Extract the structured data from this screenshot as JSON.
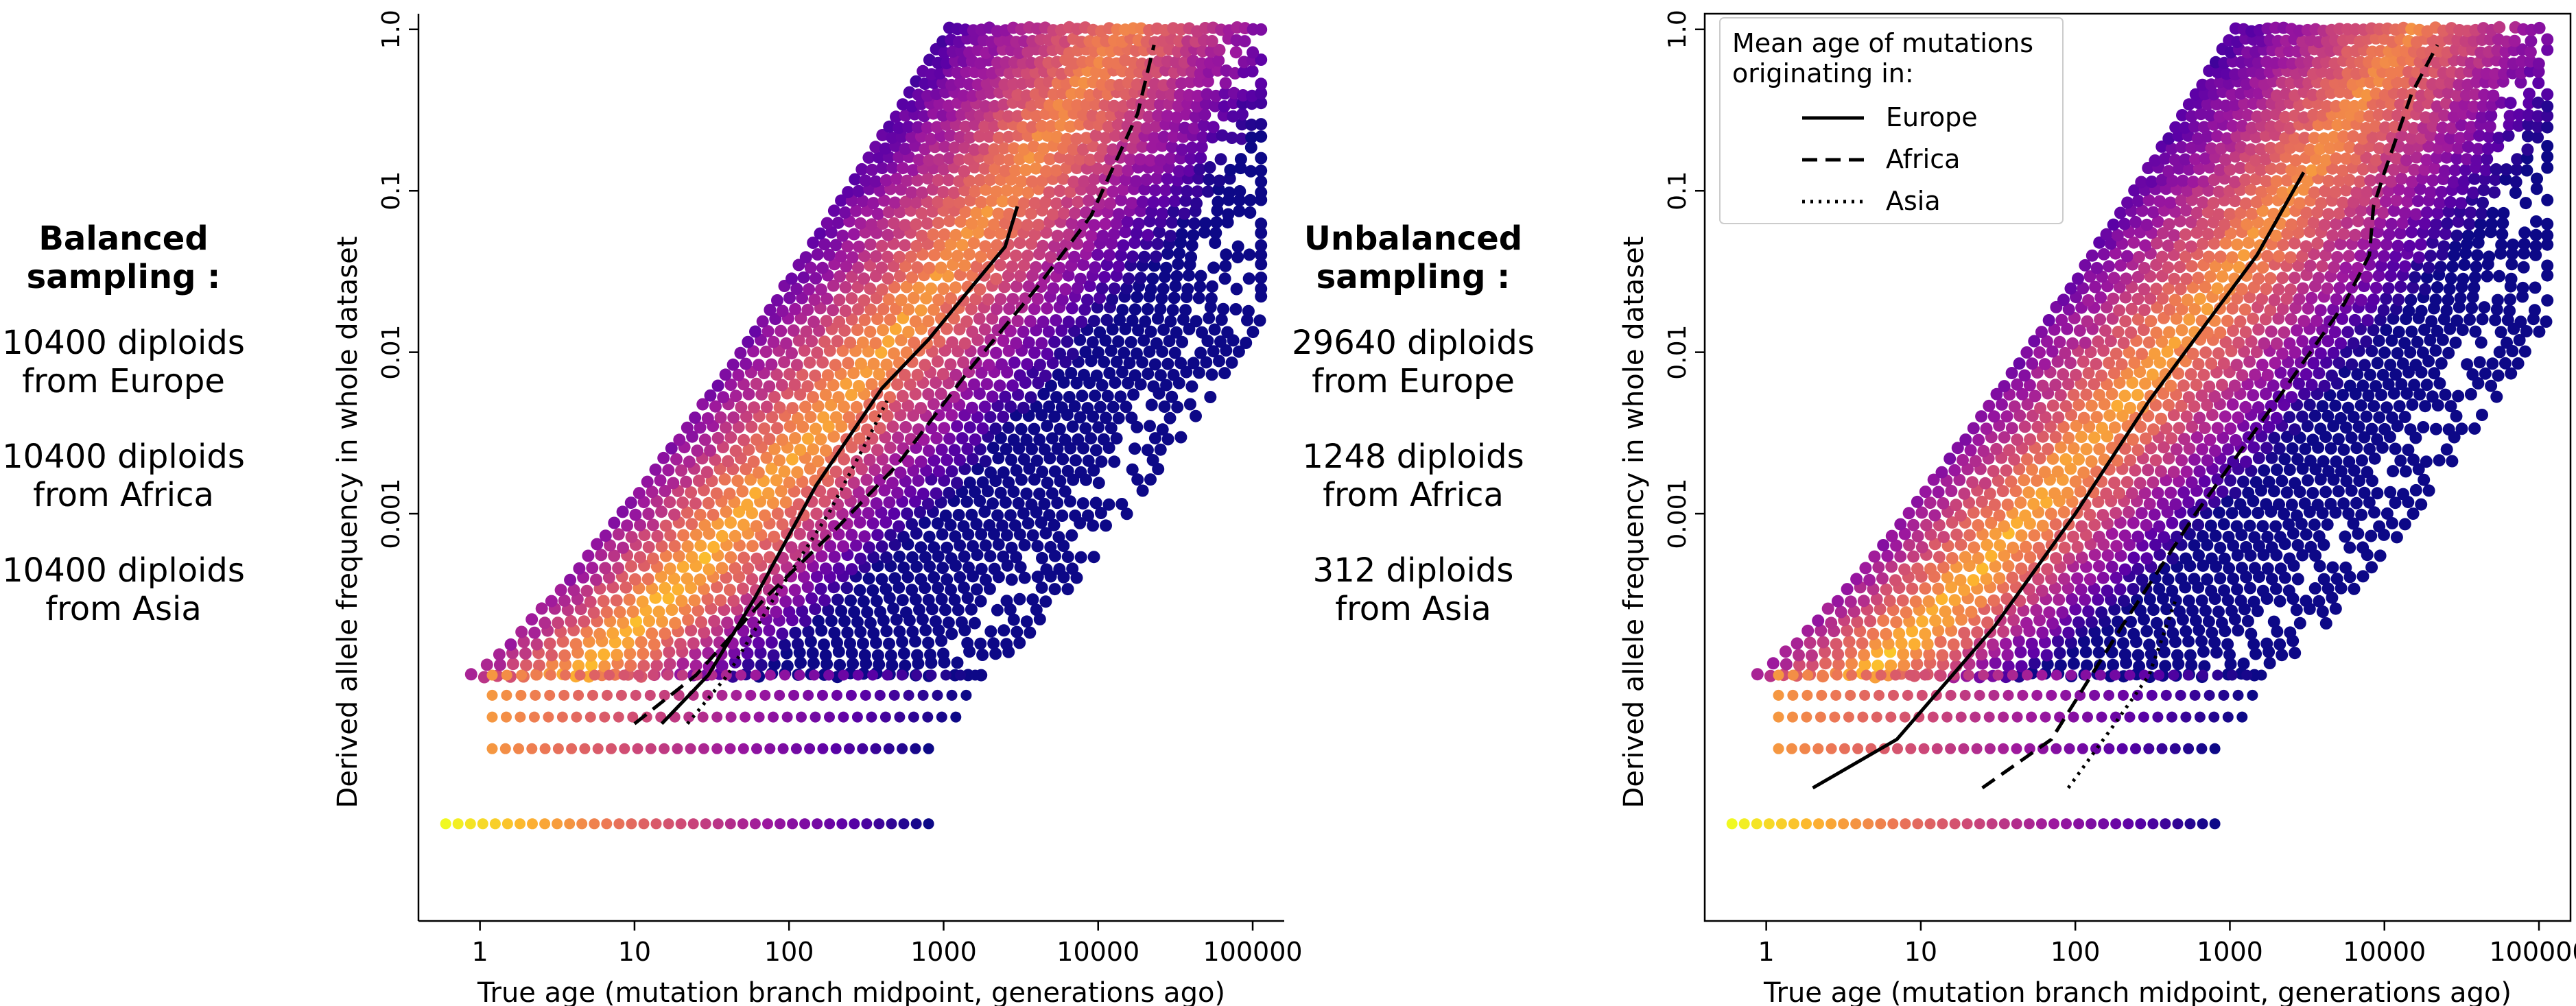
{
  "annotations": {
    "left": {
      "heading": "Balanced\nsampling :",
      "groups": [
        "10400 diploids\nfrom Europe",
        "10400 diploids\nfrom Africa",
        "10400 diploids\nfrom Asia"
      ]
    },
    "right": {
      "heading": "Unbalanced\nsampling :",
      "groups": [
        "29640 diploids\nfrom Europe",
        "1248 diploids\nfrom Africa",
        "312 diploids\nfrom Asia"
      ]
    }
  },
  "chart_data": [
    {
      "type": "heatmap",
      "title": "",
      "xlabel": "True age (mutation branch midpoint, generations ago)",
      "ylabel": "Derived allele frequency in whole dataset",
      "xscale": "log",
      "yscale": "log",
      "xlim": [
        0.4,
        160000
      ],
      "ylim": [
        3e-06,
        1.25
      ],
      "xticks": [
        {
          "v": 1,
          "label": "1"
        },
        {
          "v": 10,
          "label": "10"
        },
        {
          "v": 100,
          "label": "100"
        },
        {
          "v": 1000,
          "label": "1000"
        },
        {
          "v": 10000,
          "label": "10000"
        },
        {
          "v": 100000,
          "label": "100000"
        }
      ],
      "yticks": [
        {
          "v": 0.001,
          "label": "0.001"
        },
        {
          "v": 0.01,
          "label": "0.01"
        },
        {
          "v": 0.1,
          "label": "0.1"
        },
        {
          "v": 1.0,
          "label": "1.0"
        }
      ],
      "colormap": [
        "#0d0887",
        "#5c01a6",
        "#9c179e",
        "#cc4778",
        "#ed7953",
        "#fdb42f",
        "#f0f921"
      ],
      "density": {
        "diagonal_low_y": 0.0001,
        "diagonal_low_x": 8,
        "diagonal_high_y": 1.0,
        "diagonal_high_x": 30000,
        "spread_low": 0.6,
        "spread_high": 0.9,
        "row_freqs": [
          3.5e-05,
          5.5e-05,
          7.5e-05,
          0.0001
        ],
        "row_x_end": [
          800,
          1200,
          1400,
          1600
        ],
        "bottom_row_x_start": 0.6,
        "bottom_row_x_end": 800
      },
      "series": [
        {
          "name": "Europe",
          "dash": "solid",
          "points": [
            [
              15,
              5e-05
            ],
            [
              30,
              0.0001
            ],
            [
              60,
              0.0003
            ],
            [
              150,
              0.0015
            ],
            [
              400,
              0.006
            ],
            [
              800,
              0.012
            ],
            [
              1500,
              0.025
            ],
            [
              2500,
              0.045
            ],
            [
              3000,
              0.08
            ]
          ]
        },
        {
          "name": "Africa",
          "dash": "dashed",
          "points": [
            [
              10,
              5e-05
            ],
            [
              25,
              0.0001
            ],
            [
              70,
              0.0003
            ],
            [
              200,
              0.0008
            ],
            [
              500,
              0.002
            ],
            [
              1500,
              0.008
            ],
            [
              4000,
              0.025
            ],
            [
              9000,
              0.07
            ],
            [
              18000,
              0.3
            ],
            [
              23000,
              0.8
            ]
          ]
        },
        {
          "name": "Asia",
          "dash": "dotted",
          "points": [
            [
              22,
              5e-05
            ],
            [
              40,
              0.0001
            ],
            [
              80,
              0.0003
            ],
            [
              180,
              0.001
            ],
            [
              330,
              0.003
            ],
            [
              430,
              0.005
            ]
          ]
        }
      ]
    },
    {
      "type": "heatmap",
      "title": "",
      "xlabel": "True age (mutation branch midpoint, generations ago)",
      "ylabel": "Derived allele frequency in whole dataset",
      "xscale": "log",
      "yscale": "log",
      "xlim": [
        0.4,
        160000
      ],
      "ylim": [
        3e-06,
        1.25
      ],
      "xticks": [
        {
          "v": 1,
          "label": "1"
        },
        {
          "v": 10,
          "label": "10"
        },
        {
          "v": 100,
          "label": "100"
        },
        {
          "v": 1000,
          "label": "1000"
        },
        {
          "v": 10000,
          "label": "10000"
        },
        {
          "v": 100000,
          "label": "100000"
        }
      ],
      "yticks": [
        {
          "v": 0.001,
          "label": "0.001"
        },
        {
          "v": 0.01,
          "label": "0.01"
        },
        {
          "v": 0.1,
          "label": "0.1"
        },
        {
          "v": 1.0,
          "label": "1.0"
        }
      ],
      "colormap": [
        "#0d0887",
        "#5c01a6",
        "#9c179e",
        "#cc4778",
        "#ed7953",
        "#fdb42f",
        "#f0f921"
      ],
      "density": {
        "diagonal_low_y": 0.0001,
        "diagonal_low_x": 8,
        "diagonal_high_y": 1.0,
        "diagonal_high_x": 30000,
        "spread_low": 0.6,
        "spread_high": 0.9,
        "row_freqs": [
          3.5e-05,
          5.5e-05,
          7.5e-05,
          0.0001
        ],
        "row_x_end": [
          800,
          1200,
          1400,
          1600
        ],
        "bottom_row_x_start": 0.6,
        "bottom_row_x_end": 800
      },
      "legend": {
        "title": "Mean age of mutations\noriginating in:",
        "position": "top-left"
      },
      "series": [
        {
          "name": "Europe",
          "dash": "solid",
          "points": [
            [
              2,
              2e-05
            ],
            [
              7,
              4e-05
            ],
            [
              30,
              0.0002
            ],
            [
              100,
              0.001
            ],
            [
              300,
              0.005
            ],
            [
              700,
              0.015
            ],
            [
              1500,
              0.04
            ],
            [
              3000,
              0.13
            ]
          ]
        },
        {
          "name": "Africa",
          "dash": "dashed",
          "points": [
            [
              25,
              2e-05
            ],
            [
              70,
              4e-05
            ],
            [
              200,
              0.0002
            ],
            [
              600,
              0.001
            ],
            [
              2000,
              0.005
            ],
            [
              5500,
              0.02
            ],
            [
              8000,
              0.04
            ],
            [
              8500,
              0.08
            ],
            [
              10000,
              0.13
            ],
            [
              15000,
              0.4
            ],
            [
              22000,
              0.8
            ]
          ]
        },
        {
          "name": "Asia",
          "dash": "dotted",
          "points": [
            [
              90,
              2e-05
            ],
            [
              180,
              5e-05
            ],
            [
              300,
              0.0001
            ],
            [
              450,
              0.0003
            ]
          ]
        }
      ]
    }
  ]
}
